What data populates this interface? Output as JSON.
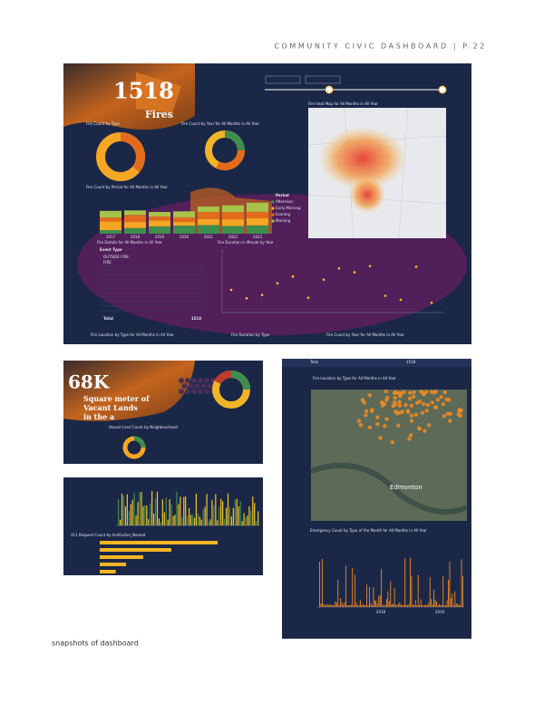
{
  "header": {
    "title": "COMMUNITY CIVIC DASHBOARD | P.22"
  },
  "caption": "snapshots of dashboard",
  "fires_panel": {
    "kpi_value": "1518",
    "kpi_label": "Fires",
    "type_chart_title": "Fire Count by Type",
    "year_donut_title": "Fire Count by Year for All Months in All Year",
    "period_chart_title": "Fire Count by Period for All Months in All Year",
    "heatmap_title": "Fire heat Map for All Months in All Year",
    "details_title": "Fire Details for All Months in All Year",
    "duration_title": "Fire Duration in Minute by Year",
    "period_legend": [
      "Period",
      "Afternoon",
      "Early Morning",
      "Evening",
      "Morning"
    ],
    "years": [
      "2017",
      "2018",
      "2019",
      "2020",
      "2021",
      "2022",
      "2023"
    ],
    "table": {
      "header": "Event Type",
      "rows": [
        "OUTSIDE FIRE",
        "FIRE"
      ],
      "total_label": "Total",
      "total_value": "1518"
    },
    "footer": [
      "Fire Location by Type for All Months in All Year",
      "Fire Duration by Type",
      "Fire Count by Year for All Months in All Year"
    ]
  },
  "vacant_panel": {
    "kpi_value": "68K",
    "kpi_lines": [
      "Square meter of",
      "Vacant Lands",
      "in the a"
    ],
    "chart_title": "Vacant Land Count by Neighbourhood"
  },
  "request_panel": {
    "chart_title": "311 Request Count by Institution_Named"
  },
  "location_panel": {
    "total_label": "Total",
    "total_value": "1518",
    "map_title": "Fire Location by Type for All Months in All Year",
    "city": "Edmonton",
    "chart_title": "Emergency Count by Type of the Month for All Months in All Year",
    "years": [
      "2018",
      "2019"
    ]
  }
}
